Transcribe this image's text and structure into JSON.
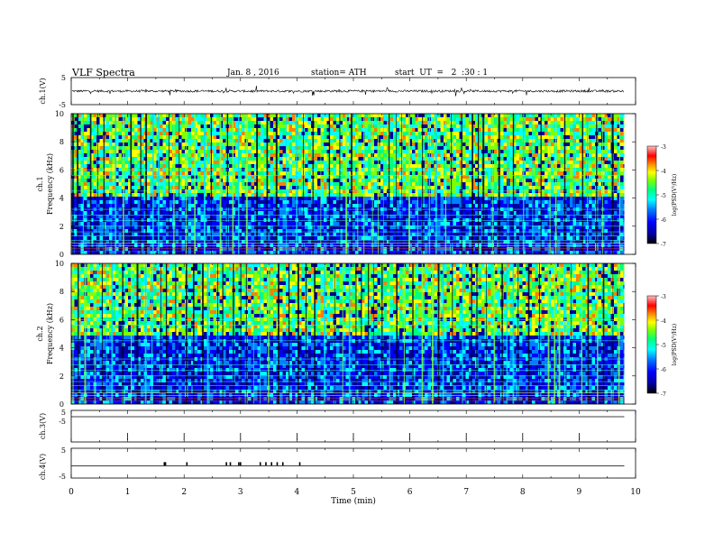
{
  "header": {
    "title": "VLF Spectra",
    "date": "Jan. 8 , 2016",
    "station": "station= ATH",
    "start_ut": "start  UT  =   2  :30 : 1"
  },
  "colors": {
    "spectrogram_scale": [
      "#000000",
      "#0000a0",
      "#0000ff",
      "#0080ff",
      "#00ffff",
      "#00ff80",
      "#80ff00",
      "#ffff00",
      "#ff8000",
      "#ff0000",
      "#ffc0c0"
    ]
  },
  "chart_data": [
    {
      "type": "line",
      "panel": "ch1-waveform",
      "ylabel": "ch.1(V)",
      "yticks": [
        "5",
        "-5"
      ],
      "ylim": [
        -5,
        5
      ],
      "x_range_min": [
        0,
        9.8
      ],
      "approx_level": 0
    },
    {
      "type": "heatmap",
      "panel": "ch1-spectrogram",
      "ylabel": "ch.1\nFrequency (kHz)",
      "ylabel_lines": [
        "ch.1",
        "Frequency (kHz)"
      ],
      "yticks": [
        "0",
        "2",
        "4",
        "6",
        "8",
        "10"
      ],
      "ylim_khz": [
        0,
        10
      ],
      "colorbar": {
        "label": "log(PSD(V²/Hz)",
        "ticks": [
          "-3",
          "-4",
          "-5",
          "-6",
          "-7"
        ],
        "range": [
          -7,
          -3
        ]
      }
    },
    {
      "type": "heatmap",
      "panel": "ch2-spectrogram",
      "ylabel": "ch.2\nFrequency (kHz)",
      "ylabel_lines": [
        "ch.2",
        "Frequency (kHz)"
      ],
      "yticks": [
        "0",
        "2",
        "4",
        "6",
        "8",
        "10"
      ],
      "ylim_khz": [
        0,
        10
      ],
      "colorbar": {
        "label": "log(PSD(V²/Hz)",
        "ticks": [
          "-3",
          "-4",
          "-5",
          "-6",
          "-7"
        ],
        "range": [
          -7,
          -3
        ]
      }
    },
    {
      "type": "line",
      "panel": "ch3-waveform",
      "ylabel": "ch.3(V)",
      "yticks": [
        "5",
        "-5"
      ],
      "ylim": [
        -5,
        5
      ],
      "minute_marks": [
        1,
        2,
        3,
        4,
        5,
        6,
        7,
        8,
        9
      ]
    },
    {
      "type": "line",
      "panel": "ch4-waveform",
      "ylabel": "ch.4(V)",
      "yticks": [
        "5",
        "-5"
      ],
      "ylim": [
        -5,
        5
      ],
      "pulse_times_min": [
        1.65,
        1.67,
        2.05,
        2.75,
        2.82,
        2.97,
        3.0,
        3.35,
        3.45,
        3.55,
        3.65,
        3.75,
        4.05
      ]
    }
  ],
  "xaxis": {
    "label": "Time  (min)",
    "ticks": [
      "0",
      "1",
      "2",
      "3",
      "4",
      "5",
      "6",
      "7",
      "8",
      "9",
      "10"
    ],
    "xlim": [
      0,
      10
    ]
  }
}
